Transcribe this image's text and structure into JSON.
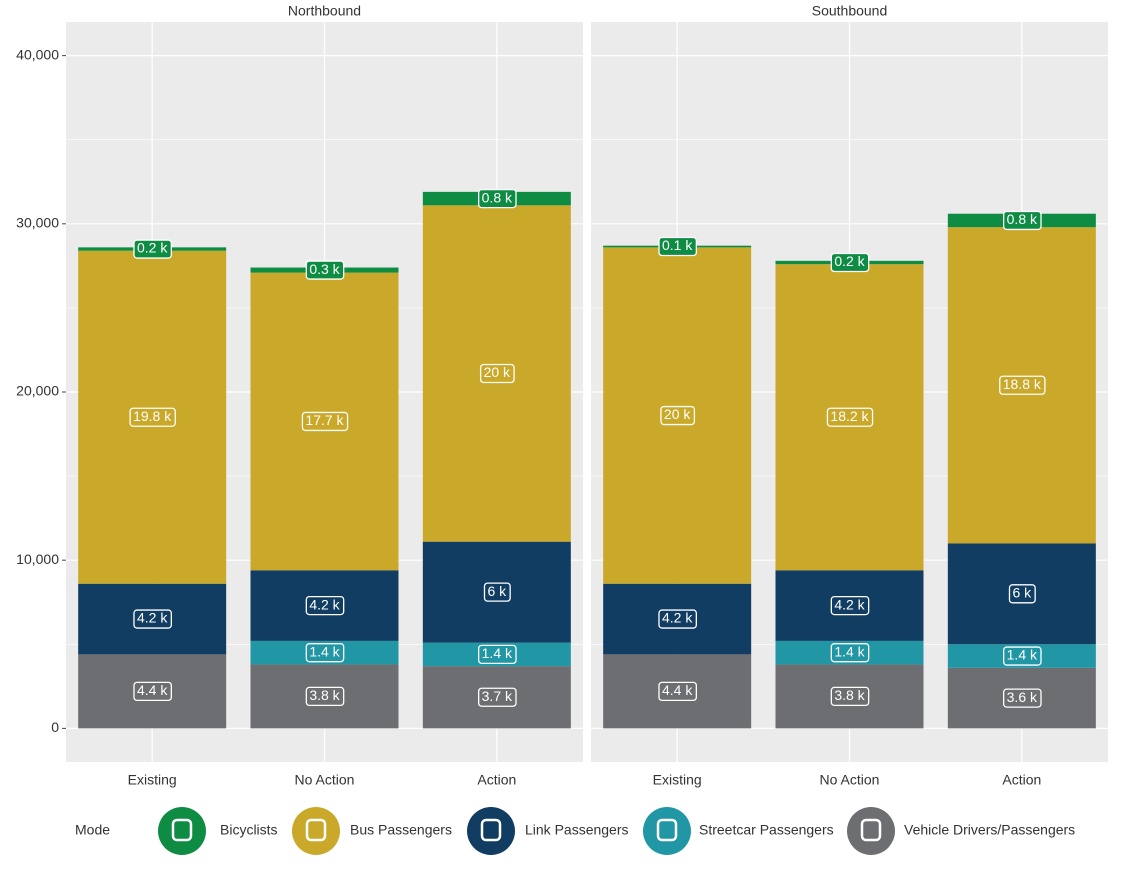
{
  "chart_data": [
    {
      "type": "stacked-bar",
      "title": "Northbound",
      "legend_title": "Mode",
      "categories": [
        "Existing",
        "No Action",
        "Action"
      ],
      "ylim": [
        -2000,
        42000
      ],
      "yticks": [
        0,
        {
          "value": 10000,
          "label": "10,000"
        },
        {
          "value": 20000,
          "label": "20,000"
        },
        {
          "value": 30000,
          "label": "30,000"
        },
        {
          "value": 40000,
          "label": "40,000"
        }
      ],
      "grid": true,
      "series": [
        {
          "name": "Bicyclists",
          "color": "#0e8c44",
          "values": [
            200,
            300,
            800
          ],
          "value_labels": [
            "0.2 k",
            "0.3 k",
            "0.8 k"
          ]
        },
        {
          "name": "Bus Passengers",
          "color": "#c9a82a",
          "values": [
            19800,
            17700,
            20000
          ],
          "value_labels": [
            "19.8 k",
            "17.7 k",
            "20 k"
          ]
        },
        {
          "name": "Link Passengers",
          "color": "#123d63",
          "values": [
            4200,
            4200,
            6000
          ],
          "value_labels": [
            "4.2 k",
            "4.2 k",
            "6 k"
          ]
        },
        {
          "name": "Streetcar Passengers",
          "color": "#2196a5",
          "values": [
            null,
            1400,
            1400
          ],
          "value_labels": [
            null,
            "1.4 k",
            "1.4 k"
          ]
        },
        {
          "name": "Vehicle Drivers/Passengers",
          "color": "#6d6e71",
          "values": [
            4400,
            3800,
            3700
          ],
          "value_labels": [
            "4.4 k",
            "3.8 k",
            "3.7 k"
          ]
        }
      ]
    },
    {
      "type": "stacked-bar",
      "title": "Southbound",
      "categories": [
        "Existing",
        "No Action",
        "Action"
      ],
      "ylim": [
        -2000,
        42000
      ],
      "yticks": [
        0,
        10000,
        20000,
        30000,
        40000
      ],
      "grid": true,
      "series": [
        {
          "name": "Bicyclists",
          "color": "#0e8c44",
          "values": [
            100,
            200,
            800
          ],
          "value_labels": [
            "0.1 k",
            "0.2 k",
            "0.8 k"
          ]
        },
        {
          "name": "Bus Passengers",
          "color": "#c9a82a",
          "values": [
            20000,
            18200,
            18800
          ],
          "value_labels": [
            "20 k",
            "18.2 k",
            "18.8 k"
          ]
        },
        {
          "name": "Link Passengers",
          "color": "#123d63",
          "values": [
            4200,
            4200,
            6000
          ],
          "value_labels": [
            "4.2 k",
            "4.2 k",
            "6 k"
          ]
        },
        {
          "name": "Streetcar Passengers",
          "color": "#2196a5",
          "values": [
            null,
            1400,
            1400
          ],
          "value_labels": [
            null,
            "1.4 k",
            "1.4 k"
          ]
        },
        {
          "name": "Vehicle Drivers/Passengers",
          "color": "#6d6e71",
          "values": [
            4400,
            3800,
            3600
          ],
          "value_labels": [
            "4.4 k",
            "3.8 k",
            "3.6 k"
          ]
        }
      ]
    }
  ]
}
